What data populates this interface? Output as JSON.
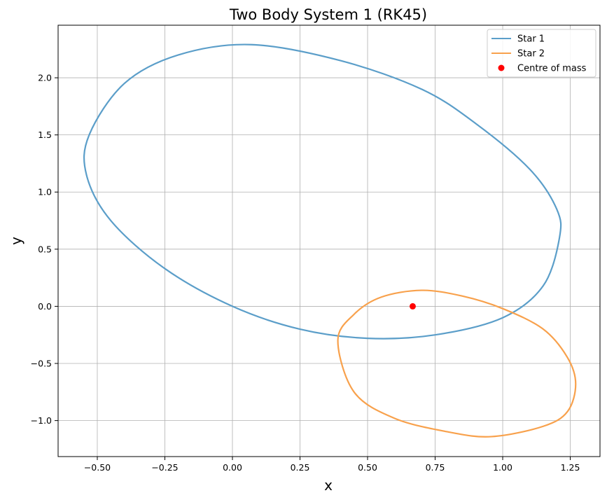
{
  "chart_data": {
    "type": "line",
    "title": "Two Body System 1 (RK45)",
    "xlabel": "x",
    "ylabel": "y",
    "xlim": [
      -0.645,
      1.36
    ],
    "ylim": [
      -1.315,
      2.46
    ],
    "grid": true,
    "legend_position": "top-right",
    "xticks": [
      -0.5,
      -0.25,
      0.0,
      0.25,
      0.5,
      0.75,
      1.0,
      1.25
    ],
    "xtick_labels": [
      "−0.50",
      "−0.25",
      "0.00",
      "0.25",
      "0.50",
      "0.75",
      "1.00",
      "1.25"
    ],
    "yticks": [
      -1.0,
      -0.5,
      0.0,
      0.5,
      1.0,
      1.5,
      2.0
    ],
    "ytick_labels": [
      "−1.0",
      "−0.5",
      "0.0",
      "0.5",
      "1.0",
      "1.5",
      "2.0"
    ],
    "series": [
      {
        "name": "Star 1",
        "kind": "line",
        "color": "#5b9ec9",
        "x": [
          0.0,
          0.25,
          0.5,
          0.75,
          1.0,
          1.15,
          1.21,
          1.2,
          1.1,
          0.9,
          0.7,
          0.4,
          0.07,
          -0.2,
          -0.4,
          -0.53,
          -0.54,
          -0.45,
          -0.25,
          0.0
        ],
        "y": [
          0.0,
          -0.2,
          -0.28,
          -0.25,
          -0.1,
          0.18,
          0.6,
          0.85,
          1.2,
          1.6,
          1.9,
          2.15,
          2.29,
          2.2,
          1.95,
          1.5,
          1.15,
          0.75,
          0.33,
          0.0
        ]
      },
      {
        "name": "Star 2",
        "kind": "line",
        "color": "#f8a14c",
        "x": [
          0.39,
          0.45,
          0.55,
          0.7,
          0.85,
          1.0,
          1.15,
          1.24,
          1.27,
          1.24,
          1.15,
          0.96,
          0.8,
          0.6,
          0.45,
          0.39
        ],
        "y": [
          -0.3,
          -0.07,
          0.08,
          0.14,
          0.09,
          -0.02,
          -0.2,
          -0.45,
          -0.68,
          -0.92,
          -1.05,
          -1.14,
          -1.1,
          -0.98,
          -0.75,
          -0.3
        ]
      },
      {
        "name": "Centre of mass",
        "kind": "point",
        "color": "#ff0000",
        "x": [
          0.667
        ],
        "y": [
          0.0
        ]
      }
    ]
  }
}
